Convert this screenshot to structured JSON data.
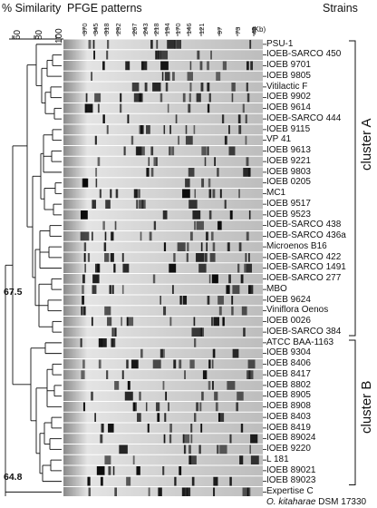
{
  "headers": {
    "similarity": "% Similarity",
    "patterns": "PFGE patterns",
    "strains": "Strains"
  },
  "similarity_ticks": [
    "60",
    "80",
    "100"
  ],
  "size_markers": [
    "370",
    "345",
    "318",
    "292",
    "267",
    "243",
    "218",
    "194",
    "170",
    "146",
    "121",
    "97",
    "73",
    "48"
  ],
  "size_unit": "(Kb)",
  "strains": [
    "PSU-1",
    "IOEB-SARCO 450",
    "IOEB 9701",
    "IOEB 9805",
    "Vitilactic F",
    "IOEB 9902",
    "IOEB 9614",
    "IOEB-SARCO 444",
    "IOEB 9115",
    "VP 41",
    "IOEB 9613",
    "IOEB 9221",
    "IOEB 9803",
    "IOEB 0205",
    "MC1",
    "IOEB 9517",
    "IOEB 9523",
    "IOEB-SARCO 438",
    "IOEB-SARCO 436a",
    "Microenos B16",
    "IOEB-SARCO 422",
    "IOEB-SARCO 1491",
    "IOEB-SARCO 277",
    "MBO",
    "IOEB 9624",
    "Viniflora Oenos",
    "IOEB 0026",
    "IOEB-SARCO 384",
    "ATCC BAA-1163",
    "IOEB 9304",
    "IOEB 8406",
    "IOEB 8417",
    "IOEB 8802",
    "IOEB 8905",
    "IOEB 8908",
    "IOEB 8403",
    "IOEB 8419",
    "IOEB 89024",
    "IOEB 9220",
    "L 181",
    "IOEB 89021",
    "IOEB 89023",
    "Expertise C",
    "O. kitaharae DSM 17330"
  ],
  "node_labels": [
    "67.5",
    "64.8"
  ],
  "clusters": [
    "cluster A",
    "cluster B"
  ],
  "colors": {
    "ink": "#111111",
    "gel_light": "#d9d9d9",
    "gel_dark": "#555555",
    "band": "#0a0a0a"
  }
}
